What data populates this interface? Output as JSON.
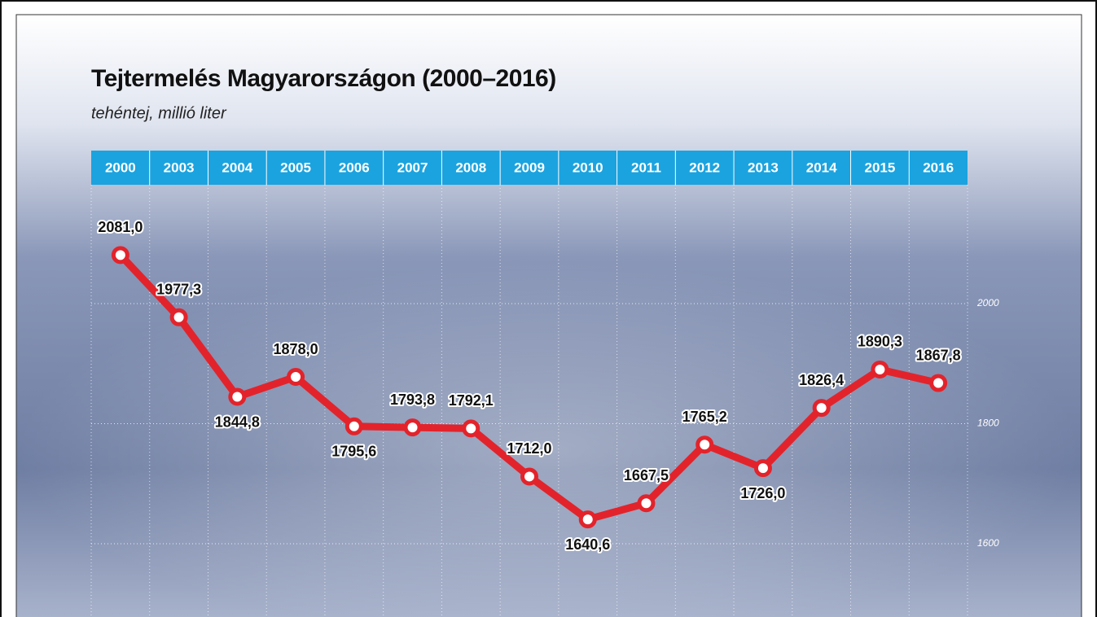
{
  "chart_data": {
    "type": "line",
    "title": "Tejtermelés Magyarországon (2000–2016)",
    "subtitle": "tehéntej, millió liter",
    "categories": [
      "2000",
      "2003",
      "2004",
      "2005",
      "2006",
      "2007",
      "2008",
      "2009",
      "2010",
      "2011",
      "2012",
      "2013",
      "2014",
      "2015",
      "2016"
    ],
    "values": [
      2081.0,
      1977.3,
      1844.8,
      1878.0,
      1795.6,
      1793.8,
      1792.1,
      1712.0,
      1640.6,
      1667.5,
      1765.2,
      1726.0,
      1826.4,
      1890.3,
      1867.8
    ],
    "value_labels": [
      "2081,0",
      "1977,3",
      "1844,8",
      "1878,0",
      "1795,6",
      "1793,8",
      "1792,1",
      "1712,0",
      "1640,6",
      "1667,5",
      "1765,2",
      "1726,0",
      "1826,4",
      "1890,3",
      "1867,8"
    ],
    "color": "#e3232b",
    "ylim": [
      1478,
      2194
    ],
    "yticks": [
      1600,
      1800,
      2000
    ],
    "grid": true
  }
}
